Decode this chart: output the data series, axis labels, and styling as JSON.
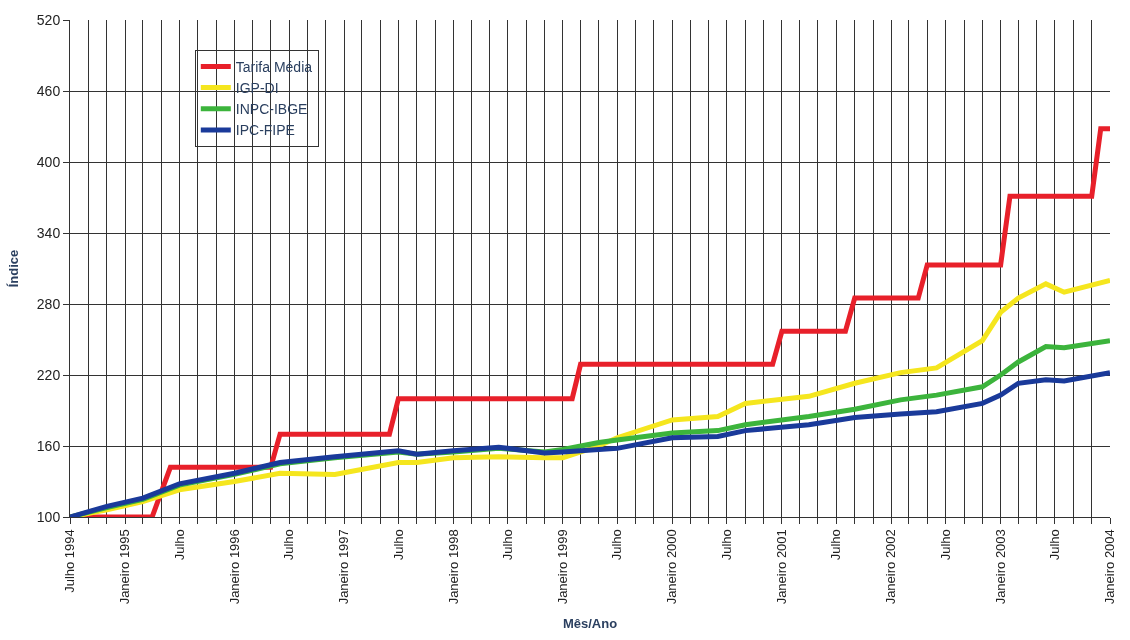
{
  "chart_data": {
    "type": "line",
    "xlabel": "Mês/Ano",
    "ylabel": "Índice",
    "xlim": [
      "1994-07",
      "2004-01"
    ],
    "ylim": [
      100,
      520
    ],
    "yticks": [
      100,
      160,
      220,
      280,
      340,
      400,
      460,
      520
    ],
    "xticks": [
      {
        "value": "1994-07",
        "label": "Julho 1994"
      },
      {
        "value": "1994-09",
        "label": null
      },
      {
        "value": "1994-11",
        "label": null
      },
      {
        "value": "1995-01",
        "label": "Janeiro 1995"
      },
      {
        "value": "1995-03",
        "label": null
      },
      {
        "value": "1995-05",
        "label": null
      },
      {
        "value": "1995-07",
        "label": "Julho"
      },
      {
        "value": "1995-09",
        "label": null
      },
      {
        "value": "1995-11",
        "label": null
      },
      {
        "value": "1996-01",
        "label": "Janeiro 1996"
      },
      {
        "value": "1996-03",
        "label": null
      },
      {
        "value": "1996-05",
        "label": null
      },
      {
        "value": "1996-07",
        "label": "Julho"
      },
      {
        "value": "1996-09",
        "label": null
      },
      {
        "value": "1996-11",
        "label": null
      },
      {
        "value": "1997-01",
        "label": "Janeiro 1997"
      },
      {
        "value": "1997-03",
        "label": null
      },
      {
        "value": "1997-05",
        "label": null
      },
      {
        "value": "1997-07",
        "label": "Julho"
      },
      {
        "value": "1997-09",
        "label": null
      },
      {
        "value": "1997-11",
        "label": null
      },
      {
        "value": "1998-01",
        "label": "Janeiro 1998"
      },
      {
        "value": "1998-03",
        "label": null
      },
      {
        "value": "1998-05",
        "label": null
      },
      {
        "value": "1998-07",
        "label": "Julho"
      },
      {
        "value": "1998-09",
        "label": null
      },
      {
        "value": "1998-11",
        "label": null
      },
      {
        "value": "1999-01",
        "label": "Janeiro 1999"
      },
      {
        "value": "1999-03",
        "label": null
      },
      {
        "value": "1999-05",
        "label": null
      },
      {
        "value": "1999-07",
        "label": "Julho"
      },
      {
        "value": "1999-09",
        "label": null
      },
      {
        "value": "1999-11",
        "label": null
      },
      {
        "value": "2000-01",
        "label": "Janeiro 2000"
      },
      {
        "value": "2000-03",
        "label": null
      },
      {
        "value": "2000-05",
        "label": null
      },
      {
        "value": "2000-07",
        "label": "Julho"
      },
      {
        "value": "2000-09",
        "label": null
      },
      {
        "value": "2000-11",
        "label": null
      },
      {
        "value": "2001-01",
        "label": "Janeiro 2001"
      },
      {
        "value": "2001-03",
        "label": null
      },
      {
        "value": "2001-05",
        "label": null
      },
      {
        "value": "2001-07",
        "label": "Julho"
      },
      {
        "value": "2001-09",
        "label": null
      },
      {
        "value": "2001-11",
        "label": null
      },
      {
        "value": "2002-01",
        "label": "Janeiro 2002"
      },
      {
        "value": "2002-03",
        "label": null
      },
      {
        "value": "2002-05",
        "label": null
      },
      {
        "value": "2002-07",
        "label": "Julho"
      },
      {
        "value": "2002-09",
        "label": null
      },
      {
        "value": "2002-11",
        "label": null
      },
      {
        "value": "2003-01",
        "label": "Janeiro 2003"
      },
      {
        "value": "2003-03",
        "label": null
      },
      {
        "value": "2003-05",
        "label": null
      },
      {
        "value": "2003-07",
        "label": "Julho"
      },
      {
        "value": "2003-09",
        "label": null
      },
      {
        "value": "2003-11",
        "label": null
      },
      {
        "value": "2004-01",
        "label": "Janeiro 2004"
      }
    ],
    "grid": true,
    "legend": "top left",
    "line_style": "solid",
    "x": [
      "1994-07",
      "1994-11",
      "1995-03",
      "1995-07",
      "1996-01",
      "1996-06",
      "1996-12",
      "1997-07",
      "1997-09",
      "1998-01",
      "1998-06",
      "1998-11",
      "1999-01",
      "1999-05",
      "1999-07",
      "2000-01",
      "2000-06",
      "2000-09",
      "2001-04",
      "2001-09",
      "2002-02",
      "2002-06",
      "2002-11",
      "2003-01",
      "2003-03",
      "2003-06",
      "2003-08",
      "2004-01"
    ],
    "series": [
      {
        "name": "Tarifa Média",
        "color": "#e8202a",
        "x": [
          "1994-07",
          "1995-04",
          "1995-06",
          "1996-05",
          "1996-06",
          "1997-06",
          "1997-07",
          "1999-02",
          "1999-03",
          "2000-12",
          "2001-01",
          "2001-08",
          "2001-09",
          "2002-04",
          "2002-05",
          "2003-01",
          "2003-02",
          "2003-11",
          "2003-12",
          "2004-01"
        ],
        "values": [
          100,
          100,
          142,
          142,
          170,
          170,
          200,
          200,
          229,
          229,
          257,
          257,
          285,
          285,
          313,
          313,
          371,
          371,
          428,
          428
        ]
      },
      {
        "name": "IGP-DI",
        "color": "#f5e61e",
        "values": [
          100,
          106,
          113,
          123,
          130,
          137,
          136,
          146,
          146,
          150,
          151,
          150,
          150,
          160,
          167,
          182,
          185,
          196,
          202,
          213,
          222,
          226,
          249,
          273,
          285,
          297,
          290,
          300
        ]
      },
      {
        "name": "INPC-IBGE",
        "color": "#3cb43c",
        "values": [
          100,
          108,
          115,
          127,
          136,
          145,
          150,
          155,
          153,
          155,
          158,
          155,
          157,
          163,
          165,
          171,
          173,
          178,
          185,
          191,
          199,
          203,
          210,
          220,
          231,
          244,
          243,
          249
        ]
      },
      {
        "name": "IPC-FIPE",
        "color": "#1a3a9a",
        "values": [
          100,
          109,
          116,
          128,
          137,
          146,
          151,
          156,
          153,
          156,
          159,
          154,
          155,
          157,
          158,
          167,
          168,
          173,
          178,
          184,
          187,
          189,
          196,
          203,
          213,
          216,
          215,
          222
        ]
      }
    ]
  }
}
